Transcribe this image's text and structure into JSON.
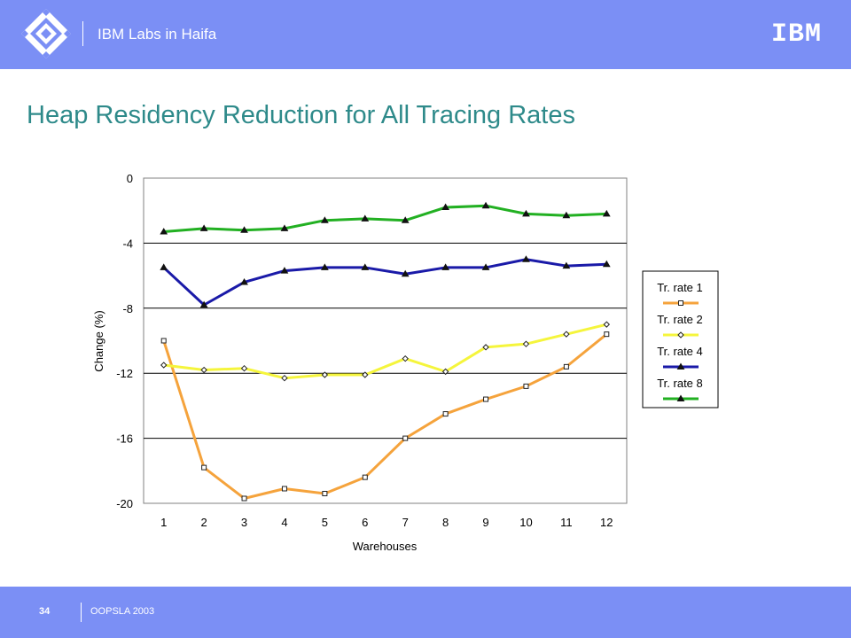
{
  "header": {
    "lab_name": "IBM Labs in Haifa",
    "logo_text": "IBM"
  },
  "title": "Heap Residency Reduction for All Tracing Rates",
  "footer": {
    "page_number": "34",
    "conference": "OOPSLA 2003"
  },
  "colors": {
    "banner": "#7b8ff5",
    "title": "#2e8a8a",
    "series": [
      "#f5a33c",
      "#f5f53c",
      "#1a1aa8",
      "#22b022"
    ]
  },
  "chart_data": {
    "type": "line",
    "xlabel": "Warehouses",
    "ylabel": "Change (%)",
    "ylim": [
      -20,
      0
    ],
    "yticks": [
      0,
      -4,
      -8,
      -12,
      -16,
      -20
    ],
    "x": [
      1,
      2,
      3,
      4,
      5,
      6,
      7,
      8,
      9,
      10,
      11,
      12
    ],
    "grid": "horizontal",
    "legend_position": "right",
    "series": [
      {
        "name": "Tr. rate 1",
        "marker": "square",
        "values": [
          -10.0,
          -17.8,
          -19.7,
          -19.1,
          -19.4,
          -18.4,
          -16.0,
          -14.5,
          -13.6,
          -12.8,
          -11.6,
          -9.6
        ]
      },
      {
        "name": "Tr. rate 2",
        "marker": "diamond",
        "values": [
          -11.5,
          -11.8,
          -11.7,
          -12.3,
          -12.1,
          -12.1,
          -11.1,
          -11.9,
          -10.4,
          -10.2,
          -9.6,
          -9.0
        ]
      },
      {
        "name": "Tr. rate 4",
        "marker": "triangle",
        "values": [
          -5.5,
          -7.8,
          -6.4,
          -5.7,
          -5.5,
          -5.5,
          -5.9,
          -5.5,
          -5.5,
          -5.0,
          -5.4,
          -5.3
        ]
      },
      {
        "name": "Tr. rate 8",
        "marker": "triangle",
        "values": [
          -3.3,
          -3.1,
          -3.2,
          -3.1,
          -2.6,
          -2.5,
          -2.6,
          -1.8,
          -1.7,
          -2.2,
          -2.3,
          -2.2
        ]
      }
    ]
  }
}
